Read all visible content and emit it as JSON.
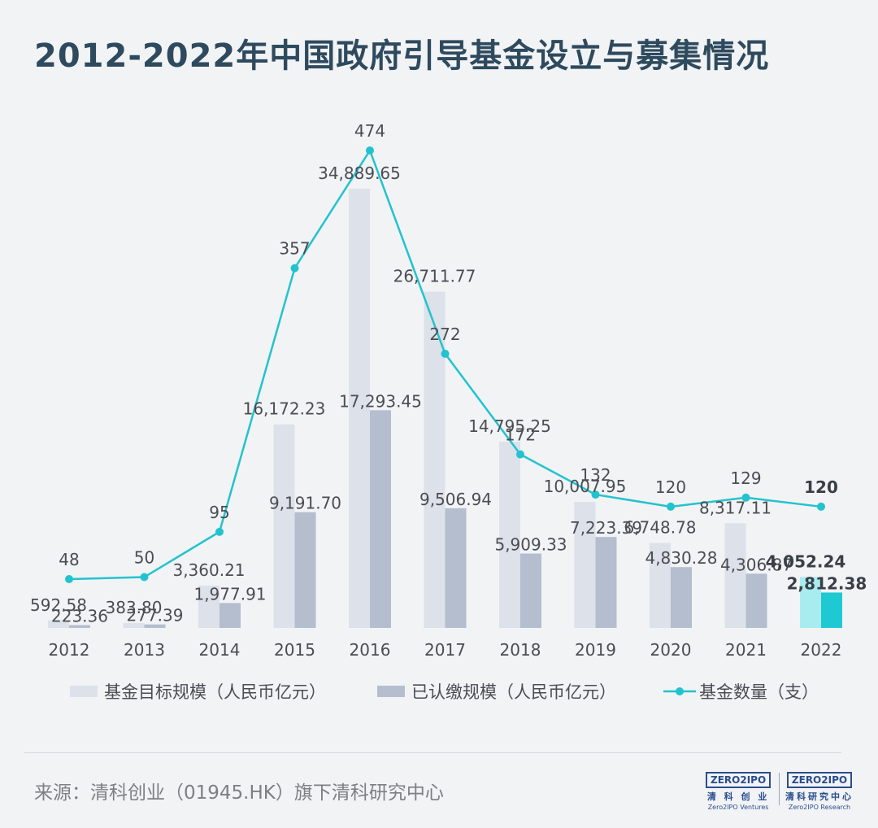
{
  "title": "2012-2022年中国政府引导基金设立与募集情况",
  "source": "来源：清科创业（01945.HK）旗下清科研究中心",
  "logos": [
    {
      "badge": "ZERO2IPO",
      "cn": "清 科 创 业",
      "en": "Zero2IPO Ventures"
    },
    {
      "badge": "ZERO2IPO",
      "cn": "清科研究中心",
      "en": "Zero2IPO Research"
    }
  ],
  "colors": {
    "target_bar": "#dde1e9",
    "paid_bar": "#b4bece",
    "target_bar_highlight": "#a8ecef",
    "paid_bar_highlight": "#1ec9d2",
    "line": "#22c3cf",
    "title": "#2e4a5e"
  },
  "chart_data": {
    "type": "bar+line",
    "categories": [
      "2012",
      "2013",
      "2014",
      "2015",
      "2016",
      "2017",
      "2018",
      "2019",
      "2020",
      "2021",
      "2022"
    ],
    "series": [
      {
        "name": "基金目标规模（人民币亿元）",
        "type": "bar",
        "axis": "left",
        "values": [
          592.58,
          383.8,
          3360.21,
          16172.23,
          34889.65,
          26711.77,
          14795.25,
          10007.95,
          6748.78,
          8317.11,
          4052.24
        ],
        "labels": [
          "592.58",
          "383.80",
          "3,360.21",
          "16,172.23",
          "34,889.65",
          "26,711.77",
          "14,795.25",
          "10,007.95",
          "6,748.78",
          "8,317.11",
          "4,052.24"
        ]
      },
      {
        "name": "已认缴规模（人民币亿元）",
        "type": "bar",
        "axis": "left",
        "values": [
          223.36,
          277.39,
          1977.91,
          9191.7,
          17293.45,
          9506.94,
          5909.33,
          7223.39,
          4830.28,
          4306.87,
          2812.38
        ],
        "labels": [
          "223.36",
          "277.39",
          "1,977.91",
          "9,191.70",
          "17,293.45",
          "9,506.94",
          "5,909.33",
          "7,223.39",
          "4,830.28",
          "4,306.87",
          "2,812.38"
        ]
      },
      {
        "name": "基金数量（支）",
        "type": "line",
        "axis": "right",
        "values": [
          48,
          50,
          95,
          357,
          474,
          272,
          172,
          132,
          120,
          129,
          120
        ],
        "labels": [
          "48",
          "50",
          "95",
          "357",
          "474",
          "272",
          "172",
          "132",
          "120",
          "129",
          "120"
        ]
      }
    ],
    "highlight_category": "2022",
    "legend_position": "bottom",
    "grid": false
  }
}
